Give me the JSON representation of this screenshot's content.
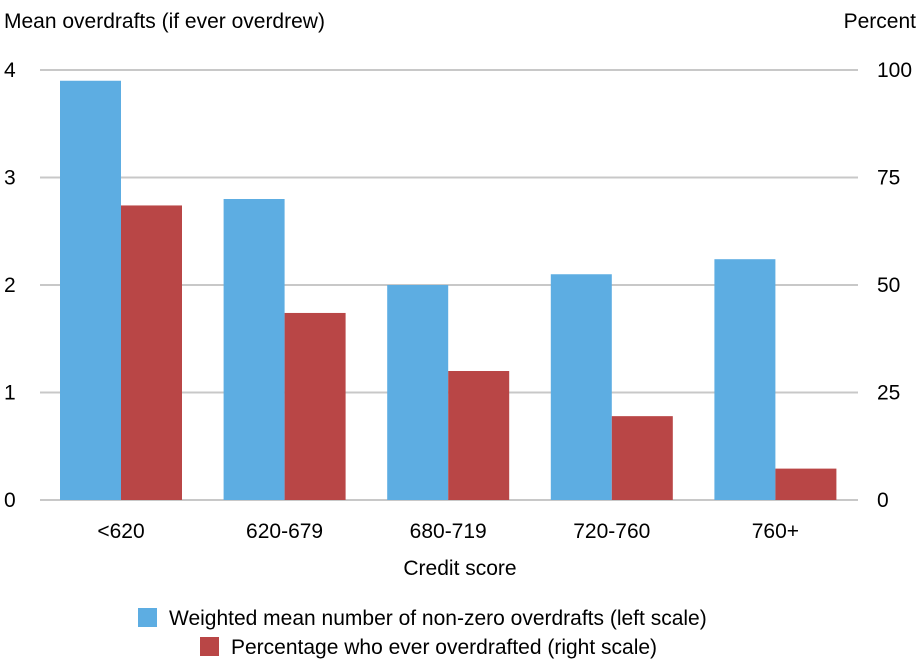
{
  "chart_data": {
    "type": "bar",
    "title": "",
    "xlabel": "Credit score",
    "ylabel_left": "Mean overdrafts (if ever overdrew)",
    "ylabel_right": "Percent",
    "categories": [
      "<620",
      "620-679",
      "680-719",
      "720-760",
      "760+"
    ],
    "y_left": {
      "range": [
        0,
        4
      ],
      "ticks": [
        "0",
        "1",
        "2",
        "3",
        "4"
      ]
    },
    "y_right": {
      "range": [
        0,
        100
      ],
      "ticks": [
        "0",
        "25",
        "50",
        "75",
        "100"
      ]
    },
    "grid": true,
    "legend_position": "bottom",
    "series": [
      {
        "name": "Weighted mean number of non-zero overdrafts (left scale)",
        "axis": "left",
        "color": "#5dade2",
        "values": [
          3.9,
          2.8,
          2.0,
          2.1,
          2.24
        ]
      },
      {
        "name": "Percentage who ever overdrafted (right scale)",
        "axis": "right",
        "color": "#b94646",
        "values": [
          68.5,
          43.5,
          30.0,
          19.5,
          7.3
        ]
      }
    ]
  }
}
